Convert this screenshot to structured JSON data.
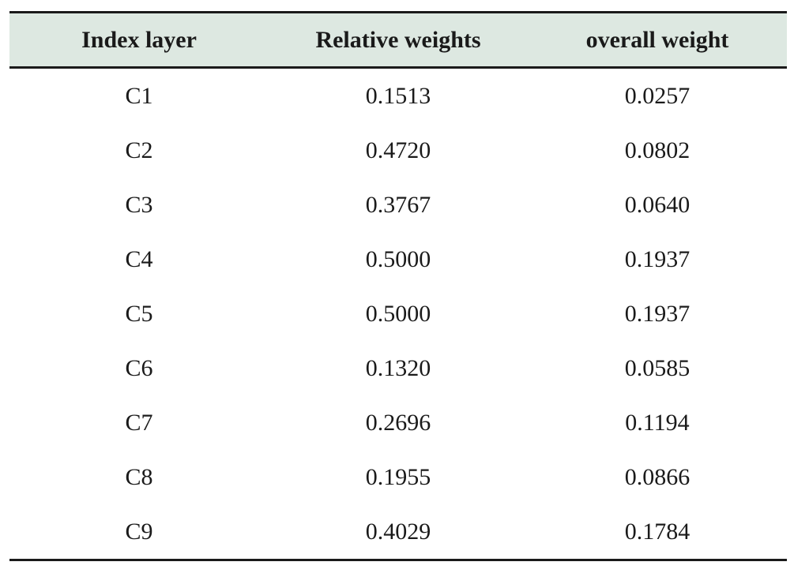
{
  "colors": {
    "header_background": "#dde8e1",
    "rule": "#1a1a1a",
    "text": "#1a1a1a"
  },
  "table": {
    "headers": [
      "Index layer",
      "Relative weights",
      "overall weight"
    ],
    "rows": [
      [
        "C1",
        "0.1513",
        "0.0257"
      ],
      [
        "C2",
        "0.4720",
        "0.0802"
      ],
      [
        "C3",
        "0.3767",
        "0.0640"
      ],
      [
        "C4",
        "0.5000",
        "0.1937"
      ],
      [
        "C5",
        "0.5000",
        "0.1937"
      ],
      [
        "C6",
        "0.1320",
        "0.0585"
      ],
      [
        "C7",
        "0.2696",
        "0.1194"
      ],
      [
        "C8",
        "0.1955",
        "0.0866"
      ],
      [
        "C9",
        "0.4029",
        "0.1784"
      ]
    ]
  }
}
